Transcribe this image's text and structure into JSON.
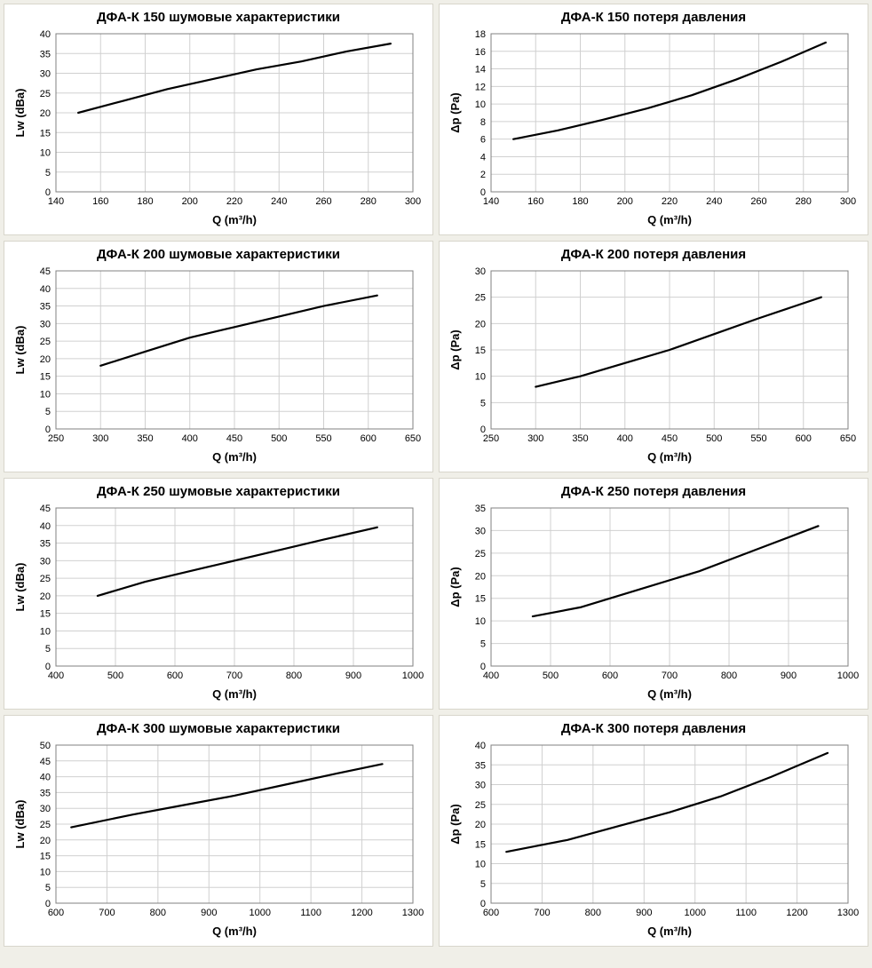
{
  "page": {
    "background_color": "#f0efe8",
    "panel_bg": "#ffffff",
    "panel_border": "#d8d6cc",
    "grid_color": "#d0d0d0",
    "axis_color": "#808080",
    "line_color": "#000000",
    "text_color": "#000000",
    "title_fontsize": 15,
    "label_fontsize": 13,
    "tick_fontsize": 11,
    "line_width": 2.2,
    "grid_line_width": 1
  },
  "charts": [
    {
      "title": "ДФА-К 150 шумовые характеристики",
      "xlabel": "Q (m³/h)",
      "ylabel": "Lw (dBa)",
      "xlim": [
        140,
        300
      ],
      "x_tick_step": 20,
      "ylim": [
        0,
        40
      ],
      "y_tick_step": 5,
      "series": {
        "x": [
          150,
          170,
          190,
          210,
          230,
          250,
          270,
          290
        ],
        "y": [
          20,
          23,
          26,
          28.5,
          31,
          33,
          35.5,
          37.5
        ]
      }
    },
    {
      "title": "ДФА-К 150 потеря давления",
      "xlabel": "Q (m³/h)",
      "ylabel": "Δp (Pa)",
      "xlim": [
        140,
        300
      ],
      "x_tick_step": 20,
      "ylim": [
        0,
        18
      ],
      "y_tick_step": 2,
      "series": {
        "x": [
          150,
          170,
          190,
          210,
          230,
          250,
          270,
          290
        ],
        "y": [
          6,
          7,
          8.2,
          9.5,
          11,
          12.8,
          14.8,
          17
        ]
      }
    },
    {
      "title": "ДФА-К 200 шумовые характеристики",
      "xlabel": "Q (m³/h)",
      "ylabel": "Lw (dBa)",
      "xlim": [
        250,
        650
      ],
      "x_tick_step": 50,
      "ylim": [
        0,
        45
      ],
      "y_tick_step": 5,
      "series": {
        "x": [
          300,
          350,
          400,
          450,
          500,
          550,
          610
        ],
        "y": [
          18,
          22,
          26,
          29,
          32,
          35,
          38
        ]
      }
    },
    {
      "title": "ДФА-К 200 потеря давления",
      "xlabel": "Q (m³/h)",
      "ylabel": "Δp (Pa)",
      "xlim": [
        250,
        650
      ],
      "x_tick_step": 50,
      "ylim": [
        0,
        30
      ],
      "y_tick_step": 5,
      "series": {
        "x": [
          300,
          350,
          400,
          450,
          500,
          550,
          620
        ],
        "y": [
          8,
          10,
          12.5,
          15,
          18,
          21,
          25
        ]
      }
    },
    {
      "title": "ДФА-К 250 шумовые характеристики",
      "xlabel": "Q (m³/h)",
      "ylabel": "Lw (dBa)",
      "xlim": [
        400,
        1000
      ],
      "x_tick_step": 100,
      "ylim": [
        0,
        45
      ],
      "y_tick_step": 5,
      "series": {
        "x": [
          470,
          550,
          650,
          750,
          850,
          940
        ],
        "y": [
          20,
          24,
          28,
          32,
          36,
          39.5
        ]
      }
    },
    {
      "title": "ДФА-К 250 потеря давления",
      "xlabel": "Q (m³/h)",
      "ylabel": "Δp (Pa)",
      "xlim": [
        400,
        1000
      ],
      "x_tick_step": 100,
      "ylim": [
        0,
        35
      ],
      "y_tick_step": 5,
      "series": {
        "x": [
          470,
          550,
          650,
          750,
          850,
          950
        ],
        "y": [
          11,
          13,
          17,
          21,
          26,
          31
        ]
      }
    },
    {
      "title": "ДФА-К 300 шумовые характеристики",
      "xlabel": "Q (m³/h)",
      "ylabel": "Lw (dBa)",
      "xlim": [
        600,
        1300
      ],
      "x_tick_step": 100,
      "ylim": [
        0,
        50
      ],
      "y_tick_step": 5,
      "series": {
        "x": [
          630,
          750,
          850,
          950,
          1050,
          1150,
          1240
        ],
        "y": [
          24,
          28,
          31,
          34,
          37.5,
          41,
          44
        ]
      }
    },
    {
      "title": "ДФА-К 300 потеря давления",
      "xlabel": "Q (m³/h)",
      "ylabel": "Δp (Pa)",
      "xlim": [
        600,
        1300
      ],
      "x_tick_step": 100,
      "ylim": [
        0,
        40
      ],
      "y_tick_step": 5,
      "series": {
        "x": [
          630,
          750,
          850,
          950,
          1050,
          1150,
          1260
        ],
        "y": [
          13,
          16,
          19.5,
          23,
          27,
          32,
          38
        ]
      }
    }
  ]
}
